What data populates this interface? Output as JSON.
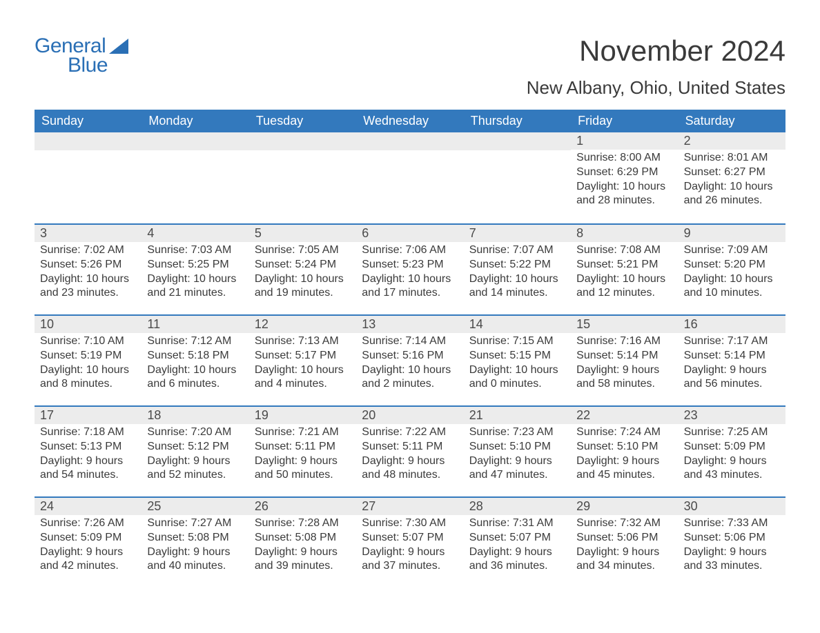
{
  "logo": {
    "text1": "General",
    "text2": "Blue",
    "color": "#2a6fb5"
  },
  "header": {
    "month_title": "November 2024",
    "location": "New Albany, Ohio, United States"
  },
  "styling": {
    "header_bg": "#3379bd",
    "header_text_color": "#ffffff",
    "daynum_bg": "#ececec",
    "week_divider_color": "#3379bd",
    "body_text_color": "#3a3a3a",
    "page_bg": "#ffffff",
    "weekday_fontsize": 18,
    "daynum_fontsize": 18,
    "body_fontsize": 16,
    "month_title_fontsize": 42,
    "location_fontsize": 26
  },
  "weekdays": [
    "Sunday",
    "Monday",
    "Tuesday",
    "Wednesday",
    "Thursday",
    "Friday",
    "Saturday"
  ],
  "calendar": {
    "type": "table",
    "columns": 7,
    "rows": 5,
    "weeks": [
      [
        null,
        null,
        null,
        null,
        null,
        {
          "n": "1",
          "sunrise": "8:00 AM",
          "sunset": "6:29 PM",
          "dl1": "Daylight: 10 hours",
          "dl2": "and 28 minutes."
        },
        {
          "n": "2",
          "sunrise": "8:01 AM",
          "sunset": "6:27 PM",
          "dl1": "Daylight: 10 hours",
          "dl2": "and 26 minutes."
        }
      ],
      [
        {
          "n": "3",
          "sunrise": "7:02 AM",
          "sunset": "5:26 PM",
          "dl1": "Daylight: 10 hours",
          "dl2": "and 23 minutes."
        },
        {
          "n": "4",
          "sunrise": "7:03 AM",
          "sunset": "5:25 PM",
          "dl1": "Daylight: 10 hours",
          "dl2": "and 21 minutes."
        },
        {
          "n": "5",
          "sunrise": "7:05 AM",
          "sunset": "5:24 PM",
          "dl1": "Daylight: 10 hours",
          "dl2": "and 19 minutes."
        },
        {
          "n": "6",
          "sunrise": "7:06 AM",
          "sunset": "5:23 PM",
          "dl1": "Daylight: 10 hours",
          "dl2": "and 17 minutes."
        },
        {
          "n": "7",
          "sunrise": "7:07 AM",
          "sunset": "5:22 PM",
          "dl1": "Daylight: 10 hours",
          "dl2": "and 14 minutes."
        },
        {
          "n": "8",
          "sunrise": "7:08 AM",
          "sunset": "5:21 PM",
          "dl1": "Daylight: 10 hours",
          "dl2": "and 12 minutes."
        },
        {
          "n": "9",
          "sunrise": "7:09 AM",
          "sunset": "5:20 PM",
          "dl1": "Daylight: 10 hours",
          "dl2": "and 10 minutes."
        }
      ],
      [
        {
          "n": "10",
          "sunrise": "7:10 AM",
          "sunset": "5:19 PM",
          "dl1": "Daylight: 10 hours",
          "dl2": "and 8 minutes."
        },
        {
          "n": "11",
          "sunrise": "7:12 AM",
          "sunset": "5:18 PM",
          "dl1": "Daylight: 10 hours",
          "dl2": "and 6 minutes."
        },
        {
          "n": "12",
          "sunrise": "7:13 AM",
          "sunset": "5:17 PM",
          "dl1": "Daylight: 10 hours",
          "dl2": "and 4 minutes."
        },
        {
          "n": "13",
          "sunrise": "7:14 AM",
          "sunset": "5:16 PM",
          "dl1": "Daylight: 10 hours",
          "dl2": "and 2 minutes."
        },
        {
          "n": "14",
          "sunrise": "7:15 AM",
          "sunset": "5:15 PM",
          "dl1": "Daylight: 10 hours",
          "dl2": "and 0 minutes."
        },
        {
          "n": "15",
          "sunrise": "7:16 AM",
          "sunset": "5:14 PM",
          "dl1": "Daylight: 9 hours",
          "dl2": "and 58 minutes."
        },
        {
          "n": "16",
          "sunrise": "7:17 AM",
          "sunset": "5:14 PM",
          "dl1": "Daylight: 9 hours",
          "dl2": "and 56 minutes."
        }
      ],
      [
        {
          "n": "17",
          "sunrise": "7:18 AM",
          "sunset": "5:13 PM",
          "dl1": "Daylight: 9 hours",
          "dl2": "and 54 minutes."
        },
        {
          "n": "18",
          "sunrise": "7:20 AM",
          "sunset": "5:12 PM",
          "dl1": "Daylight: 9 hours",
          "dl2": "and 52 minutes."
        },
        {
          "n": "19",
          "sunrise": "7:21 AM",
          "sunset": "5:11 PM",
          "dl1": "Daylight: 9 hours",
          "dl2": "and 50 minutes."
        },
        {
          "n": "20",
          "sunrise": "7:22 AM",
          "sunset": "5:11 PM",
          "dl1": "Daylight: 9 hours",
          "dl2": "and 48 minutes."
        },
        {
          "n": "21",
          "sunrise": "7:23 AM",
          "sunset": "5:10 PM",
          "dl1": "Daylight: 9 hours",
          "dl2": "and 47 minutes."
        },
        {
          "n": "22",
          "sunrise": "7:24 AM",
          "sunset": "5:10 PM",
          "dl1": "Daylight: 9 hours",
          "dl2": "and 45 minutes."
        },
        {
          "n": "23",
          "sunrise": "7:25 AM",
          "sunset": "5:09 PM",
          "dl1": "Daylight: 9 hours",
          "dl2": "and 43 minutes."
        }
      ],
      [
        {
          "n": "24",
          "sunrise": "7:26 AM",
          "sunset": "5:09 PM",
          "dl1": "Daylight: 9 hours",
          "dl2": "and 42 minutes."
        },
        {
          "n": "25",
          "sunrise": "7:27 AM",
          "sunset": "5:08 PM",
          "dl1": "Daylight: 9 hours",
          "dl2": "and 40 minutes."
        },
        {
          "n": "26",
          "sunrise": "7:28 AM",
          "sunset": "5:08 PM",
          "dl1": "Daylight: 9 hours",
          "dl2": "and 39 minutes."
        },
        {
          "n": "27",
          "sunrise": "7:30 AM",
          "sunset": "5:07 PM",
          "dl1": "Daylight: 9 hours",
          "dl2": "and 37 minutes."
        },
        {
          "n": "28",
          "sunrise": "7:31 AM",
          "sunset": "5:07 PM",
          "dl1": "Daylight: 9 hours",
          "dl2": "and 36 minutes."
        },
        {
          "n": "29",
          "sunrise": "7:32 AM",
          "sunset": "5:06 PM",
          "dl1": "Daylight: 9 hours",
          "dl2": "and 34 minutes."
        },
        {
          "n": "30",
          "sunrise": "7:33 AM",
          "sunset": "5:06 PM",
          "dl1": "Daylight: 9 hours",
          "dl2": "and 33 minutes."
        }
      ]
    ]
  },
  "labels": {
    "sunrise_prefix": "Sunrise: ",
    "sunset_prefix": "Sunset: "
  }
}
